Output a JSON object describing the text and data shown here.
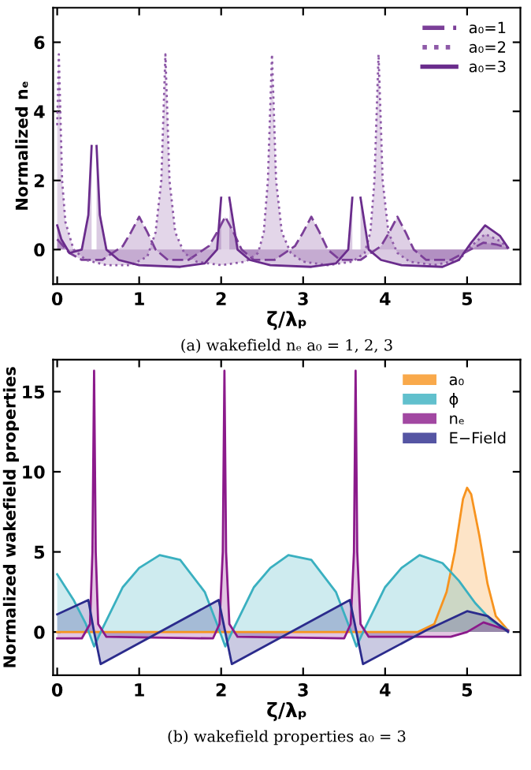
{
  "chart_data": [
    {
      "type": "area",
      "xlabel": "ζ/λₚ",
      "ylabel": "Normalized nₑ",
      "annotations": [
        "(a) wakefield nₑ a₀ = 1, 2, 3"
      ],
      "xlim": [
        -0.05,
        5.65
      ],
      "ylim": [
        -1,
        7
      ],
      "xticks": [
        0,
        1,
        2,
        3,
        4,
        5
      ],
      "yticks": [
        0,
        2,
        4,
        6
      ],
      "grid": false,
      "legend": "top right",
      "series": [
        {
          "name": "a₀=1",
          "color": "#7b3f98",
          "line_style": "dashed",
          "x": [
            0,
            0.15,
            0.3,
            0.55,
            0.8,
            0.9,
            1.0,
            1.1,
            1.2,
            1.35,
            1.6,
            1.85,
            1.95,
            2.05,
            2.15,
            2.25,
            2.4,
            2.65,
            2.9,
            3.0,
            3.1,
            3.2,
            3.3,
            3.45,
            3.7,
            3.95,
            4.05,
            4.15,
            4.25,
            4.35,
            4.5,
            4.8,
            5.0,
            5.2,
            5.35,
            5.5
          ],
          "values": [
            0.3,
            -0.1,
            -0.3,
            -0.3,
            0.1,
            0.5,
            0.95,
            0.5,
            0.0,
            -0.3,
            -0.3,
            0.1,
            0.5,
            0.95,
            0.5,
            0.0,
            -0.3,
            -0.3,
            0.1,
            0.5,
            0.95,
            0.5,
            0.0,
            -0.3,
            -0.3,
            0.1,
            0.5,
            0.95,
            0.5,
            0.0,
            -0.3,
            -0.3,
            -0.05,
            0.2,
            0.15,
            0.05
          ]
        },
        {
          "name": "a₀=2",
          "color": "#8e5aa8",
          "line_style": "dotted",
          "x": [
            0,
            0.02,
            0.06,
            0.1,
            0.2,
            0.35,
            0.6,
            0.9,
            1.1,
            1.2,
            1.27,
            1.32,
            1.37,
            1.44,
            1.55,
            1.7,
            2.0,
            2.3,
            2.45,
            2.52,
            2.57,
            2.62,
            2.67,
            2.74,
            2.85,
            3.0,
            3.3,
            3.6,
            3.75,
            3.82,
            3.87,
            3.92,
            3.97,
            4.04,
            4.15,
            4.3,
            4.6,
            4.9,
            5.05,
            5.22,
            5.4,
            5.5
          ],
          "values": [
            3.6,
            5.65,
            2,
            0.8,
            0,
            -0.3,
            -0.45,
            -0.45,
            -0.2,
            0.5,
            2,
            5.65,
            2,
            0.5,
            -0.1,
            -0.35,
            -0.45,
            -0.35,
            -0.1,
            0.5,
            2,
            5.65,
            2,
            0.5,
            -0.1,
            -0.35,
            -0.45,
            -0.35,
            -0.1,
            0.5,
            2,
            5.65,
            2,
            0.5,
            -0.1,
            -0.35,
            -0.45,
            -0.3,
            0.1,
            0.45,
            0.25,
            0.05
          ]
        },
        {
          "name": "a₀=3",
          "color": "#6a2c8c",
          "line_style": "solid",
          "x": [
            0,
            0.05,
            0.15,
            0.3,
            0.38,
            0.42,
            0.45,
            0.48,
            0.52,
            0.6,
            0.75,
            1.0,
            1.5,
            1.8,
            1.95,
            2.0,
            2.05,
            2.1,
            2.2,
            2.35,
            2.6,
            3.1,
            3.4,
            3.55,
            3.6,
            3.65,
            3.7,
            3.8,
            3.95,
            4.2,
            4.7,
            4.9,
            5.05,
            5.22,
            5.4,
            5.5
          ],
          "values": [
            0.7,
            0.3,
            -0.1,
            0,
            1,
            3,
            null,
            3,
            1,
            0,
            -0.3,
            -0.45,
            -0.5,
            -0.4,
            0,
            1.5,
            null,
            1.5,
            0,
            -0.3,
            -0.45,
            -0.5,
            -0.4,
            0,
            1.5,
            null,
            1.5,
            0,
            -0.3,
            -0.45,
            -0.5,
            -0.3,
            0.2,
            0.7,
            0.4,
            0.05
          ]
        }
      ]
    },
    {
      "type": "area",
      "xlabel": "ζ/λₚ",
      "ylabel": "Normalized wakefield properties",
      "annotations": [
        "(b) wakefield properties a₀ = 3"
      ],
      "xlim": [
        -0.05,
        5.65
      ],
      "ylim": [
        -2.7,
        17
      ],
      "xticks": [
        0,
        1,
        2,
        3,
        4,
        5
      ],
      "yticks": [
        0,
        5,
        10,
        15
      ],
      "grid": false,
      "legend": "top right",
      "series": [
        {
          "name": "a₀",
          "color": "#f7931e",
          "x": [
            0,
            4.4,
            4.6,
            4.75,
            4.85,
            4.95,
            5.0,
            5.05,
            5.15,
            5.25,
            5.35,
            5.5
          ],
          "values": [
            0,
            0,
            0.5,
            2.5,
            5,
            8.3,
            9,
            8.6,
            6,
            3,
            1,
            0.1
          ]
        },
        {
          "name": "ϕ",
          "color": "#3ab0c0",
          "x": [
            0,
            0.2,
            0.35,
            0.45,
            0.55,
            0.8,
            1.0,
            1.25,
            1.5,
            1.8,
            1.95,
            2.05,
            2.15,
            2.4,
            2.6,
            2.82,
            3.1,
            3.4,
            3.55,
            3.65,
            3.75,
            4.0,
            4.2,
            4.42,
            4.7,
            4.9,
            5.1,
            5.3,
            5.5
          ],
          "values": [
            3.6,
            2,
            0.5,
            -0.9,
            0.2,
            2.8,
            4,
            4.8,
            4.5,
            2.5,
            0.5,
            -0.9,
            0.2,
            2.8,
            4,
            4.8,
            4.5,
            2.5,
            0.5,
            -0.9,
            0.2,
            2.8,
            4,
            4.8,
            4.3,
            3.2,
            1.8,
            0.7,
            0.1
          ]
        },
        {
          "name": "nₑ",
          "color": "#8b1a8b",
          "x": [
            0,
            0.3,
            0.4,
            0.43,
            0.45,
            0.47,
            0.5,
            0.6,
            1.9,
            1.98,
            2.02,
            2.04,
            2.06,
            2.1,
            2.2,
            3.5,
            3.58,
            3.62,
            3.64,
            3.66,
            3.7,
            3.8,
            4.8,
            5.0,
            5.2,
            5.5
          ],
          "values": [
            -0.4,
            -0.4,
            0.5,
            5,
            16.3,
            5,
            0.5,
            -0.3,
            -0.4,
            0.5,
            5,
            16.3,
            5,
            0.5,
            -0.3,
            -0.4,
            0.5,
            5,
            16.3,
            5,
            0.5,
            -0.3,
            -0.3,
            0,
            0.6,
            0.1
          ]
        },
        {
          "name": "E−Field",
          "color": "#2b2b8c",
          "x": [
            0,
            0.38,
            0.45,
            0.53,
            1.97,
            2.05,
            2.13,
            3.57,
            3.65,
            3.73,
            4.5,
            5.0,
            5.25,
            5.5
          ],
          "values": [
            1.1,
            2,
            0,
            -2,
            2,
            0,
            -2,
            2,
            0,
            -2,
            0.1,
            1.3,
            1.0,
            0
          ]
        }
      ]
    }
  ]
}
